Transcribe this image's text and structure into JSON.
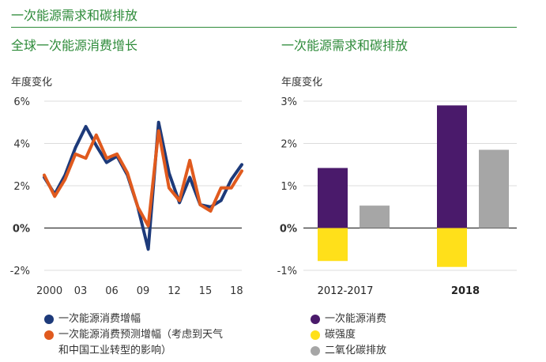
{
  "header": {
    "title": "一次能源需求和碳排放"
  },
  "chart_data": [
    {
      "type": "line",
      "title": "全球一次能源消费增长",
      "ylabel": "年度变化",
      "xlabel": "",
      "ylim": [
        -2,
        6
      ],
      "yticks": [
        "6%",
        "4%",
        "2%",
        "0%",
        "-2%"
      ],
      "ytick_values": [
        6,
        4,
        2,
        0,
        -2
      ],
      "xlim": [
        1999.5,
        2018.5
      ],
      "xticks": [
        "2000",
        "03",
        "06",
        "09",
        "12",
        "15",
        "18"
      ],
      "xtick_values": [
        2000,
        2003,
        2006,
        2009,
        2012,
        2015,
        2018
      ],
      "x": [
        1999.5,
        2000.5,
        2001.5,
        2002.5,
        2003.5,
        2004.5,
        2005.5,
        2006.5,
        2007.5,
        2008.5,
        2009.5,
        2010.5,
        2011.5,
        2012.5,
        2013.5,
        2014.5,
        2015.5,
        2016.5,
        2017.5,
        2018.5
      ],
      "series": [
        {
          "name": "一次能源消费增幅",
          "color": "#1d3a7a",
          "values": [
            2.4,
            1.6,
            2.5,
            3.8,
            4.8,
            3.9,
            3.1,
            3.4,
            2.5,
            1.0,
            -1.0,
            5.0,
            2.6,
            1.2,
            2.4,
            1.1,
            1.0,
            1.3,
            2.3,
            3.0
          ]
        },
        {
          "name": "一次能源消费预测增幅（考虑到天气\n和中国工业转型的影响）",
          "color": "#e05a1e",
          "values": [
            2.5,
            1.5,
            2.3,
            3.5,
            3.3,
            4.4,
            3.3,
            3.5,
            2.6,
            1.0,
            0.1,
            4.6,
            1.9,
            1.3,
            3.2,
            1.1,
            0.8,
            1.9,
            1.9,
            2.7
          ]
        }
      ]
    },
    {
      "type": "bar",
      "title": "一次能源需求和碳排放",
      "ylabel": "年度变化",
      "xlabel": "",
      "ylim": [
        -1,
        3
      ],
      "yticks": [
        "3%",
        "2%",
        "1%",
        "0%",
        "-1%"
      ],
      "ytick_values": [
        3,
        2,
        1,
        0,
        -1
      ],
      "categories": [
        "2012-2017",
        "2018"
      ],
      "series": [
        {
          "name": "一次能源消费",
          "color": "#4a1a6b",
          "values": [
            1.42,
            2.9
          ]
        },
        {
          "name": "碳强度",
          "color": "#ffe01a",
          "values": [
            -0.78,
            -0.92
          ]
        },
        {
          "name": "二氧化碳排放",
          "color": "#a6a6a6",
          "values": [
            0.53,
            1.85
          ]
        }
      ]
    }
  ]
}
